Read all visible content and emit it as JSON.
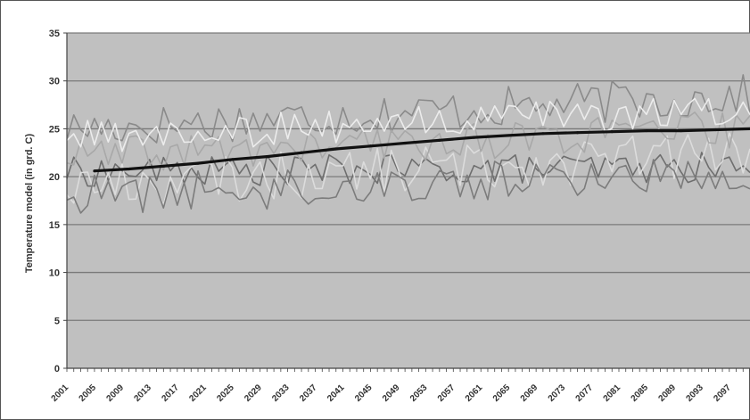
{
  "chart_data": {
    "type": "line",
    "title": "",
    "xlabel": "",
    "ylabel": "Temperature model (in grd. C)",
    "ylim": [
      0,
      35
    ],
    "xlim": [
      2001,
      2100
    ],
    "yticks": [
      "0",
      "5",
      "10",
      "15",
      "20",
      "25",
      "30",
      "35"
    ],
    "xticks": [
      "2001",
      "2005",
      "2009",
      "2013",
      "2017",
      "2021",
      "2025",
      "2029",
      "2033",
      "2037",
      "2041",
      "2045",
      "2049",
      "2053",
      "2057",
      "2061",
      "2065",
      "2069",
      "2073",
      "2077",
      "2081",
      "2085",
      "2089",
      "2093",
      "2097"
    ],
    "grid": true,
    "legend": "none",
    "colors": {
      "plot_background": "#c0c0c0",
      "gridline": "#7a7a7a",
      "mean_series": "#111111",
      "ensemble_series": [
        "#8a8a8a",
        "#6e6e6e",
        "#dcdcdc",
        "#a8a8a8",
        "#7c7c7c",
        "#ececec"
      ]
    },
    "mean_series": {
      "x_start": 2005,
      "x_step": 5,
      "values": [
        20.6,
        20.8,
        21.1,
        21.4,
        21.8,
        22.1,
        22.5,
        22.9,
        23.2,
        23.5,
        23.8,
        24.1,
        24.3,
        24.5,
        24.6,
        24.7,
        24.8,
        24.8,
        24.9,
        25.0
      ]
    },
    "ensemble_series": [
      {
        "x_start": 2001,
        "x_step": 1,
        "base_start": 25.0,
        "base_end": 28.5,
        "spread": 2.2
      },
      {
        "x_start": 2001,
        "x_step": 1,
        "base_start": 20.5,
        "base_end": 21.0,
        "spread": 1.6
      },
      {
        "x_start": 2001,
        "x_step": 1,
        "base_start": 19.0,
        "base_end": 22.5,
        "spread": 2.5
      },
      {
        "x_start": 2001,
        "x_step": 1,
        "base_start": 22.0,
        "base_end": 25.0,
        "spread": 2.0
      },
      {
        "x_start": 2001,
        "x_step": 1,
        "base_start": 18.0,
        "base_end": 20.5,
        "spread": 2.2
      },
      {
        "x_start": 2001,
        "x_step": 1,
        "base_start": 24.0,
        "base_end": 27.0,
        "spread": 1.8
      }
    ]
  }
}
